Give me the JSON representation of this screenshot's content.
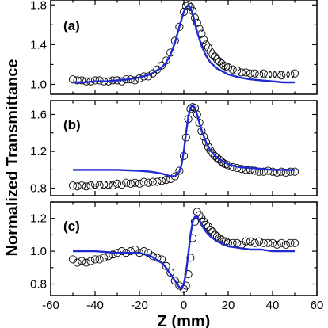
{
  "chart_data": {
    "type": "scatter",
    "xlabel": "Z (mm)",
    "ylabel": "Normalized Transmittance",
    "xlim": [
      -60,
      60
    ],
    "xticks": [
      -60,
      -40,
      -20,
      0,
      20,
      40,
      60
    ],
    "marker_style": "open-circle",
    "fit_color": "#1f2bd0",
    "panels": [
      {
        "label": "(a)",
        "ylim": [
          0.9,
          1.85
        ],
        "yticks": [
          1.0,
          1.4,
          1.8
        ],
        "ytick_labels": [
          "1.0",
          "1.4",
          "1.8"
        ],
        "points": {
          "x": [
            -50,
            -48,
            -46,
            -44,
            -42,
            -40,
            -38,
            -36,
            -34,
            -32,
            -30,
            -28,
            -26,
            -24,
            -22,
            -20,
            -18,
            -16,
            -14,
            -12,
            -10,
            -8,
            -6,
            -4,
            -2,
            0,
            1,
            2,
            3,
            4,
            5,
            6,
            7,
            8,
            9,
            10,
            11,
            12,
            13,
            14,
            15,
            16,
            17,
            18,
            19,
            20,
            22,
            24,
            26,
            28,
            30,
            32,
            34,
            36,
            38,
            40,
            42,
            44,
            46,
            48,
            50
          ],
          "y": [
            1.05,
            1.04,
            1.04,
            1.03,
            1.03,
            1.04,
            1.04,
            1.03,
            1.03,
            1.04,
            1.04,
            1.03,
            1.05,
            1.05,
            1.04,
            1.06,
            1.08,
            1.08,
            1.11,
            1.15,
            1.19,
            1.24,
            1.32,
            1.44,
            1.58,
            1.73,
            1.79,
            1.8,
            1.78,
            1.74,
            1.67,
            1.62,
            1.56,
            1.51,
            1.45,
            1.4,
            1.37,
            1.33,
            1.3,
            1.28,
            1.25,
            1.23,
            1.21,
            1.19,
            1.18,
            1.17,
            1.15,
            1.14,
            1.12,
            1.12,
            1.11,
            1.11,
            1.1,
            1.11,
            1.1,
            1.1,
            1.1,
            1.09,
            1.1,
            1.1,
            1.11
          ]
        },
        "fit": {
          "x": [
            -50,
            -45,
            -40,
            -35,
            -30,
            -25,
            -20,
            -15,
            -10,
            -8,
            -6,
            -4,
            -2,
            0,
            1,
            2,
            3,
            4,
            5,
            6,
            8,
            10,
            12,
            15,
            20,
            25,
            30,
            35,
            40,
            45,
            50
          ],
          "y": [
            1.02,
            1.02,
            1.03,
            1.03,
            1.04,
            1.05,
            1.07,
            1.1,
            1.17,
            1.22,
            1.3,
            1.42,
            1.58,
            1.73,
            1.78,
            1.79,
            1.77,
            1.71,
            1.62,
            1.53,
            1.39,
            1.29,
            1.22,
            1.16,
            1.1,
            1.07,
            1.05,
            1.04,
            1.03,
            1.02,
            1.02
          ]
        }
      },
      {
        "label": "(b)",
        "ylim": [
          0.72,
          1.75
        ],
        "yticks": [
          0.8,
          1.2,
          1.6
        ],
        "ytick_labels": [
          "0.8",
          "1.2",
          "1.6"
        ],
        "points": {
          "x": [
            -50,
            -48,
            -46,
            -44,
            -42,
            -40,
            -38,
            -36,
            -34,
            -32,
            -30,
            -28,
            -26,
            -24,
            -22,
            -20,
            -18,
            -16,
            -14,
            -12,
            -10,
            -8,
            -6,
            -4,
            -2,
            0,
            1,
            2,
            3,
            4,
            5,
            6,
            7,
            8,
            9,
            10,
            11,
            12,
            13,
            14,
            15,
            16,
            17,
            18,
            19,
            20,
            22,
            24,
            26,
            28,
            30,
            32,
            34,
            36,
            38,
            40,
            42,
            44,
            46,
            48,
            50
          ],
          "y": [
            0.83,
            0.82,
            0.83,
            0.82,
            0.83,
            0.84,
            0.83,
            0.84,
            0.84,
            0.83,
            0.85,
            0.84,
            0.86,
            0.85,
            0.86,
            0.85,
            0.87,
            0.86,
            0.87,
            0.87,
            0.88,
            0.89,
            0.9,
            0.93,
            0.99,
            1.15,
            1.35,
            1.55,
            1.66,
            1.68,
            1.67,
            1.6,
            1.51,
            1.42,
            1.36,
            1.3,
            1.25,
            1.21,
            1.18,
            1.15,
            1.13,
            1.11,
            1.09,
            1.07,
            1.06,
            1.05,
            1.03,
            1.02,
            1.01,
            1.0,
            1.0,
            0.99,
            0.98,
            0.98,
            0.99,
            0.98,
            0.97,
            0.98,
            0.97,
            0.98,
            0.98
          ]
        },
        "fit": {
          "x": [
            -50,
            -40,
            -30,
            -20,
            -15,
            -10,
            -6,
            -4,
            -2,
            -1,
            0,
            1,
            2,
            3,
            4,
            5,
            6,
            7,
            8,
            10,
            12,
            15,
            20,
            25,
            30,
            35,
            40,
            45,
            50
          ],
          "y": [
            1.0,
            1.0,
            1.0,
            0.99,
            0.98,
            0.96,
            0.93,
            0.93,
            0.98,
            1.06,
            1.2,
            1.4,
            1.57,
            1.67,
            1.7,
            1.67,
            1.6,
            1.51,
            1.43,
            1.3,
            1.21,
            1.13,
            1.06,
            1.03,
            1.02,
            1.01,
            1.0,
            1.0,
            1.0
          ]
        }
      },
      {
        "label": "(c)",
        "ylim": [
          0.73,
          1.3
        ],
        "yticks": [
          0.8,
          1.0,
          1.2
        ],
        "ytick_labels": [
          "0.8",
          "1.0",
          "1.2"
        ],
        "points": {
          "x": [
            -50,
            -48,
            -46,
            -44,
            -42,
            -40,
            -38,
            -36,
            -34,
            -32,
            -30,
            -28,
            -26,
            -24,
            -22,
            -20,
            -18,
            -16,
            -14,
            -12,
            -10,
            -8,
            -6,
            -4,
            -2,
            0,
            1,
            2,
            3,
            4,
            5,
            6,
            7,
            8,
            9,
            10,
            11,
            12,
            13,
            14,
            15,
            16,
            17,
            18,
            19,
            20,
            22,
            24,
            26,
            28,
            30,
            32,
            34,
            36,
            38,
            40,
            42,
            44,
            46,
            48,
            50
          ],
          "y": [
            0.95,
            0.93,
            0.94,
            0.93,
            0.94,
            0.95,
            0.95,
            0.96,
            0.97,
            0.98,
            0.99,
            1.0,
            0.99,
            1.0,
            1.01,
            0.99,
            1.0,
            0.99,
            0.97,
            0.96,
            0.95,
            0.91,
            0.87,
            0.82,
            0.79,
            0.77,
            0.79,
            0.86,
            0.96,
            1.08,
            1.18,
            1.24,
            1.22,
            1.2,
            1.18,
            1.16,
            1.15,
            1.13,
            1.12,
            1.1,
            1.09,
            1.08,
            1.07,
            1.06,
            1.06,
            1.05,
            1.05,
            1.05,
            1.04,
            1.06,
            1.06,
            1.05,
            1.06,
            1.05,
            1.05,
            1.05,
            1.04,
            1.05,
            1.04,
            1.05,
            1.05
          ]
        },
        "fit": {
          "x": [
            -50,
            -40,
            -30,
            -20,
            -15,
            -10,
            -8,
            -6,
            -4,
            -2,
            -1,
            0,
            1,
            2,
            3,
            4,
            5,
            6,
            7,
            8,
            10,
            12,
            15,
            20,
            25,
            30,
            35,
            40,
            45,
            50
          ],
          "y": [
            1.0,
            1.0,
            0.99,
            0.99,
            0.97,
            0.93,
            0.9,
            0.86,
            0.82,
            0.78,
            0.77,
            0.8,
            0.87,
            0.98,
            1.1,
            1.18,
            1.21,
            1.21,
            1.19,
            1.16,
            1.12,
            1.09,
            1.06,
            1.03,
            1.02,
            1.01,
            1.01,
            1.0,
            1.0,
            1.0
          ]
        }
      }
    ]
  }
}
